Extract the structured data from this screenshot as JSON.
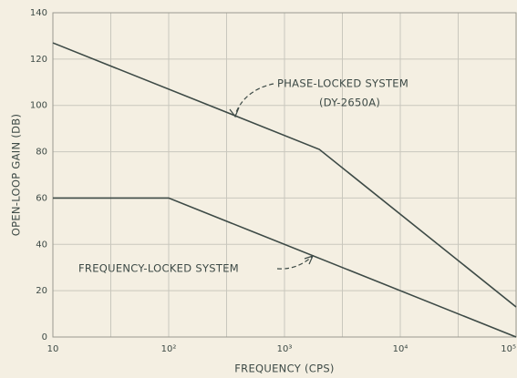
{
  "chart_data": {
    "type": "line",
    "xlabel": "FREQUENCY (CPS)",
    "ylabel": "OPEN-LOOP GAIN (DB)",
    "xscale": "log",
    "xlim": [
      10,
      100000
    ],
    "xticks": [
      10,
      {
        "value": 100,
        "label": "10²"
      },
      {
        "value": 1000,
        "label": "10³"
      },
      {
        "value": 10000,
        "label": "10⁴"
      },
      {
        "value": 100000,
        "label": "10⁵"
      }
    ],
    "ylim": [
      0,
      140
    ],
    "yticks": [
      0,
      20,
      40,
      60,
      80,
      100,
      120,
      140
    ],
    "grid": true,
    "minor_grid": true,
    "series": [
      {
        "name": "PHASE-LOCKED SYSTEM",
        "note": "(DY-2650A)",
        "color": "#3d4a46",
        "x": [
          10,
          2000,
          100000
        ],
        "values": [
          127,
          81,
          13
        ]
      },
      {
        "name": "FREQUENCY-LOCKED SYSTEM",
        "color": "#3d4a46",
        "x": [
          10,
          100,
          100000
        ],
        "values": [
          60,
          60,
          0
        ]
      }
    ]
  }
}
